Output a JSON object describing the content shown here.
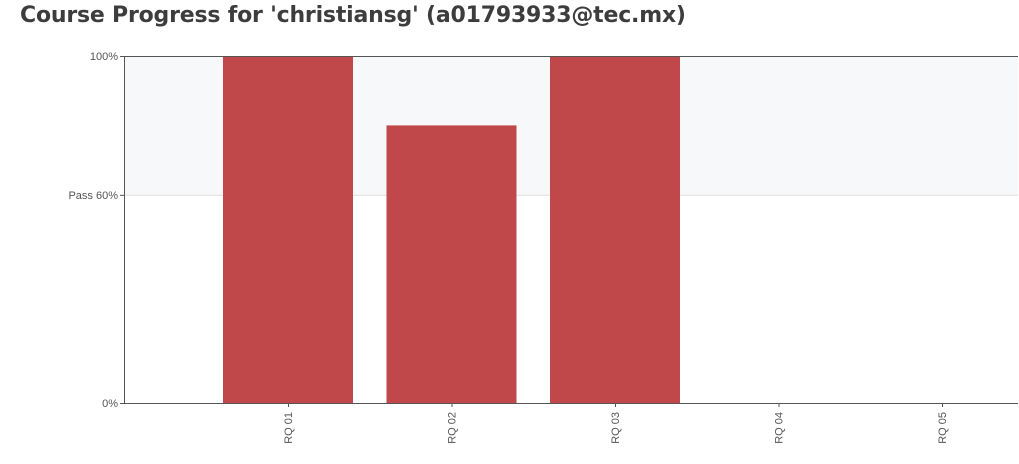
{
  "page": {
    "title": "Course Progress for 'christiansg' (a01793933@tec.mx)"
  },
  "chart_data": {
    "type": "bar",
    "title": "Course Progress for 'christiansg' (a01793933@tec.mx)",
    "xlabel": "",
    "ylabel": "",
    "categories": [
      "RQ 01",
      "RQ 02",
      "RQ 03",
      "RQ 04",
      "RQ 05"
    ],
    "values": [
      100,
      80,
      100,
      0,
      0
    ],
    "ylim": [
      0,
      100
    ],
    "y_ticks": [
      {
        "value": 0,
        "label": "0%"
      },
      {
        "value": 60,
        "label": "Pass 60%"
      },
      {
        "value": 100,
        "label": "100%"
      }
    ],
    "pass_threshold": 60,
    "colors": {
      "bar": "#c0474a",
      "pass_band": "#f7f8fa",
      "axis": "#555555",
      "gridline": "#dddddd"
    },
    "grid": false,
    "legend": "none"
  }
}
